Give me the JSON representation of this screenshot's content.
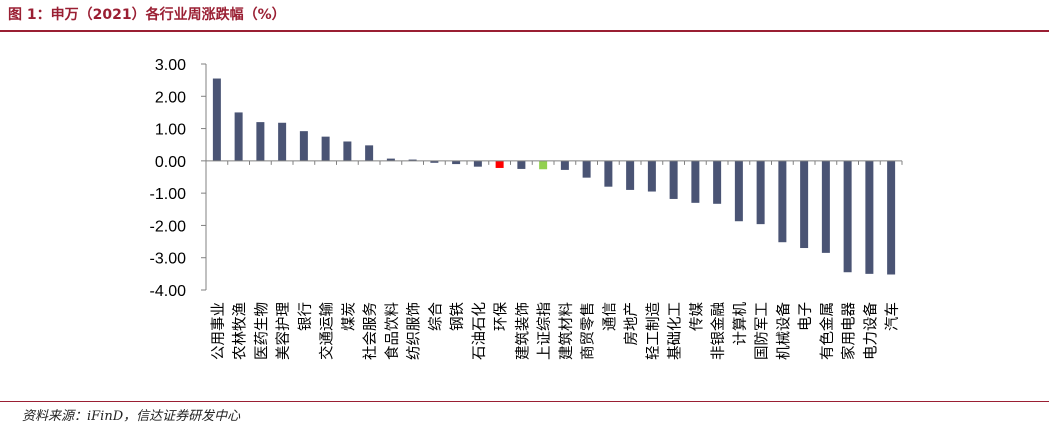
{
  "header": {
    "title": "图 1：申万（2021）各行业周涨跌幅（%）"
  },
  "footer": {
    "source": "资料来源：iFinD，信达证券研发中心"
  },
  "chart_data": {
    "type": "bar",
    "title": "",
    "xlabel": "",
    "ylabel": "",
    "ylim": [
      -4.0,
      3.0
    ],
    "yticks": [
      "3.00",
      "2.00",
      "1.00",
      "0.00",
      "-1.00",
      "-2.00",
      "-3.00",
      "-4.00"
    ],
    "grid": false,
    "colors": {
      "default": "#4a5474",
      "highlight_red": "#ff0000",
      "highlight_green": "#92d050",
      "axis": "#808080"
    },
    "categories": [
      "公用事业",
      "农林牧渔",
      "医药生物",
      "美容护理",
      "银行",
      "交通运输",
      "煤炭",
      "社会服务",
      "食品饮料",
      "纺织服饰",
      "综合",
      "钢铁",
      "石油石化",
      "环保",
      "建筑装饰",
      "上证综指",
      "建筑材料",
      "商贸零售",
      "通信",
      "房地产",
      "轻工制造",
      "基础化工",
      "传媒",
      "非银金融",
      "计算机",
      "国防军工",
      "机械设备",
      "电子",
      "有色金属",
      "家用电器",
      "电力设备",
      "汽车"
    ],
    "values": [
      2.55,
      1.5,
      1.2,
      1.18,
      0.92,
      0.75,
      0.6,
      0.48,
      0.07,
      0.04,
      -0.06,
      -0.1,
      -0.18,
      -0.22,
      -0.25,
      -0.26,
      -0.28,
      -0.52,
      -0.8,
      -0.9,
      -0.95,
      -1.18,
      -1.3,
      -1.33,
      -1.87,
      -1.96,
      -2.52,
      -2.7,
      -2.85,
      -3.45,
      -3.5,
      -3.52
    ],
    "bar_colors": [
      "#4a5474",
      "#4a5474",
      "#4a5474",
      "#4a5474",
      "#4a5474",
      "#4a5474",
      "#4a5474",
      "#4a5474",
      "#4a5474",
      "#4a5474",
      "#4a5474",
      "#4a5474",
      "#4a5474",
      "#ff0000",
      "#4a5474",
      "#92d050",
      "#4a5474",
      "#4a5474",
      "#4a5474",
      "#4a5474",
      "#4a5474",
      "#4a5474",
      "#4a5474",
      "#4a5474",
      "#4a5474",
      "#4a5474",
      "#4a5474",
      "#4a5474",
      "#4a5474",
      "#4a5474",
      "#4a5474",
      "#4a5474"
    ]
  }
}
